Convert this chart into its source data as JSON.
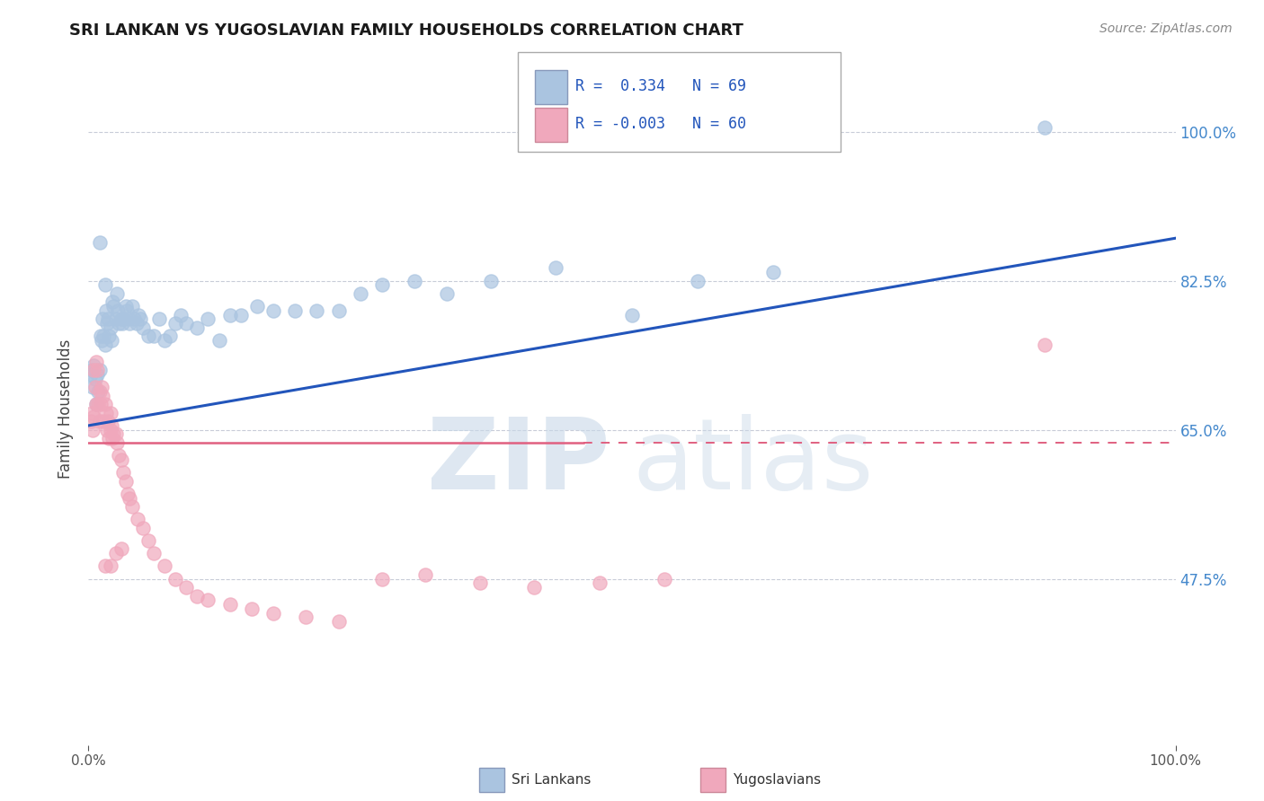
{
  "title": "SRI LANKAN VS YUGOSLAVIAN FAMILY HOUSEHOLDS CORRELATION CHART",
  "source": "Source: ZipAtlas.com",
  "ylabel": "Family Households",
  "legend_sri_label": "Sri Lankans",
  "legend_yugo_label": "Yugoslavians",
  "ytick_vals": [
    0.475,
    0.65,
    0.825,
    1.0
  ],
  "ytick_labels": [
    "47.5%",
    "65.0%",
    "82.5%",
    "100.0%"
  ],
  "xlim": [
    0.0,
    1.0
  ],
  "ylim": [
    0.28,
    1.07
  ],
  "sri_color": "#aac4e0",
  "yugo_color": "#f0a8bc",
  "sri_line_color": "#2255bb",
  "yugo_line_color": "#e06080",
  "watermark_zip_color": "#c8d8e8",
  "watermark_atlas_color": "#c8d8e8",
  "grid_color": "#c8ccd8",
  "sri_line_y0": 0.655,
  "sri_line_y1": 0.875,
  "yugo_line_y": 0.635,
  "yugo_line_x0": 0.0,
  "yugo_line_x1": 0.455,
  "sri_x": [
    0.002,
    0.003,
    0.004,
    0.005,
    0.006,
    0.007,
    0.008,
    0.009,
    0.01,
    0.01,
    0.011,
    0.012,
    0.013,
    0.014,
    0.015,
    0.015,
    0.016,
    0.017,
    0.018,
    0.019,
    0.02,
    0.021,
    0.022,
    0.023,
    0.025,
    0.026,
    0.027,
    0.028,
    0.03,
    0.031,
    0.032,
    0.034,
    0.035,
    0.037,
    0.038,
    0.04,
    0.042,
    0.044,
    0.046,
    0.048,
    0.05,
    0.055,
    0.06,
    0.065,
    0.07,
    0.075,
    0.08,
    0.085,
    0.09,
    0.1,
    0.11,
    0.12,
    0.13,
    0.14,
    0.155,
    0.17,
    0.19,
    0.21,
    0.23,
    0.25,
    0.27,
    0.3,
    0.33,
    0.37,
    0.43,
    0.5,
    0.56,
    0.63,
    0.88
  ],
  "sri_y": [
    0.715,
    0.72,
    0.7,
    0.725,
    0.71,
    0.68,
    0.715,
    0.695,
    0.72,
    0.87,
    0.76,
    0.755,
    0.78,
    0.76,
    0.75,
    0.82,
    0.79,
    0.775,
    0.78,
    0.76,
    0.77,
    0.755,
    0.8,
    0.795,
    0.78,
    0.81,
    0.79,
    0.775,
    0.78,
    0.775,
    0.78,
    0.795,
    0.79,
    0.78,
    0.775,
    0.795,
    0.78,
    0.775,
    0.785,
    0.78,
    0.77,
    0.76,
    0.76,
    0.78,
    0.755,
    0.76,
    0.775,
    0.785,
    0.775,
    0.77,
    0.78,
    0.755,
    0.785,
    0.785,
    0.795,
    0.79,
    0.79,
    0.79,
    0.79,
    0.81,
    0.82,
    0.825,
    0.81,
    0.825,
    0.84,
    0.785,
    0.825,
    0.835,
    1.005
  ],
  "yugo_x": [
    0.002,
    0.003,
    0.004,
    0.005,
    0.005,
    0.006,
    0.007,
    0.007,
    0.008,
    0.009,
    0.01,
    0.01,
    0.011,
    0.012,
    0.013,
    0.014,
    0.015,
    0.016,
    0.017,
    0.018,
    0.019,
    0.02,
    0.02,
    0.021,
    0.022,
    0.023,
    0.025,
    0.026,
    0.028,
    0.03,
    0.032,
    0.034,
    0.036,
    0.038,
    0.04,
    0.045,
    0.05,
    0.055,
    0.06,
    0.07,
    0.08,
    0.09,
    0.1,
    0.11,
    0.13,
    0.15,
    0.17,
    0.2,
    0.23,
    0.27,
    0.31,
    0.36,
    0.41,
    0.47,
    0.53,
    0.015,
    0.02,
    0.025,
    0.03,
    0.88
  ],
  "yugo_y": [
    0.66,
    0.67,
    0.65,
    0.665,
    0.72,
    0.7,
    0.68,
    0.73,
    0.72,
    0.68,
    0.695,
    0.66,
    0.68,
    0.7,
    0.69,
    0.66,
    0.68,
    0.67,
    0.65,
    0.66,
    0.64,
    0.65,
    0.67,
    0.655,
    0.64,
    0.645,
    0.645,
    0.635,
    0.62,
    0.615,
    0.6,
    0.59,
    0.575,
    0.57,
    0.56,
    0.545,
    0.535,
    0.52,
    0.505,
    0.49,
    0.475,
    0.465,
    0.455,
    0.45,
    0.445,
    0.44,
    0.435,
    0.43,
    0.425,
    0.475,
    0.48,
    0.47,
    0.465,
    0.47,
    0.475,
    0.49,
    0.49,
    0.505,
    0.51,
    0.75
  ]
}
